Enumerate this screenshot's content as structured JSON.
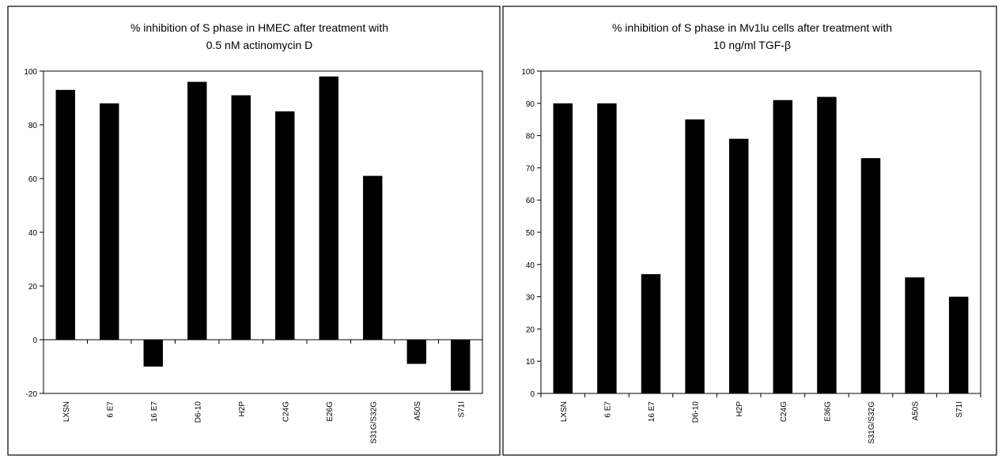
{
  "chart_data": [
    {
      "type": "bar",
      "title": "% inhibition of S phase in HMEC after treatment with",
      "subtitle": "0.5 nM actinomycin D",
      "xlabel": "",
      "ylabel": "",
      "categories": [
        "LXSN",
        "6 E7",
        "16 E7",
        "D6-10",
        "H2P",
        "C24G",
        "E26G",
        "S31G/S32G",
        "A50S",
        "S71I"
      ],
      "values": [
        93,
        88,
        -10,
        96,
        91,
        85,
        98,
        61,
        -9,
        -19
      ],
      "ylim": [
        -20,
        100
      ],
      "yticks": [
        "-20",
        "0",
        "20",
        "40",
        "60",
        "80",
        "100"
      ],
      "ytick_values": [
        -20,
        0,
        20,
        40,
        60,
        80,
        100
      ],
      "grid": false,
      "legend": "none",
      "bar_color": "#000000"
    },
    {
      "type": "bar",
      "title": "% inhibition of S phase in Mv1lu cells after treatment with",
      "subtitle": "10 ng/ml TGF-β",
      "xlabel": "",
      "ylabel": "",
      "categories": [
        "LXSN",
        "6 E7",
        "16 E7",
        "D6-10",
        "H2P",
        "C24G",
        "E36G",
        "S31G/S32G",
        "A50S",
        "S71I"
      ],
      "values": [
        90,
        90,
        37,
        85,
        79,
        91,
        92,
        73,
        36,
        30
      ],
      "ylim": [
        0,
        100
      ],
      "yticks": [
        "0",
        "10",
        "20",
        "30",
        "40",
        "50",
        "60",
        "70",
        "80",
        "90",
        "100"
      ],
      "ytick_values": [
        0,
        10,
        20,
        30,
        40,
        50,
        60,
        70,
        80,
        90,
        100
      ],
      "grid": false,
      "legend": "none",
      "bar_color": "#000000"
    }
  ]
}
